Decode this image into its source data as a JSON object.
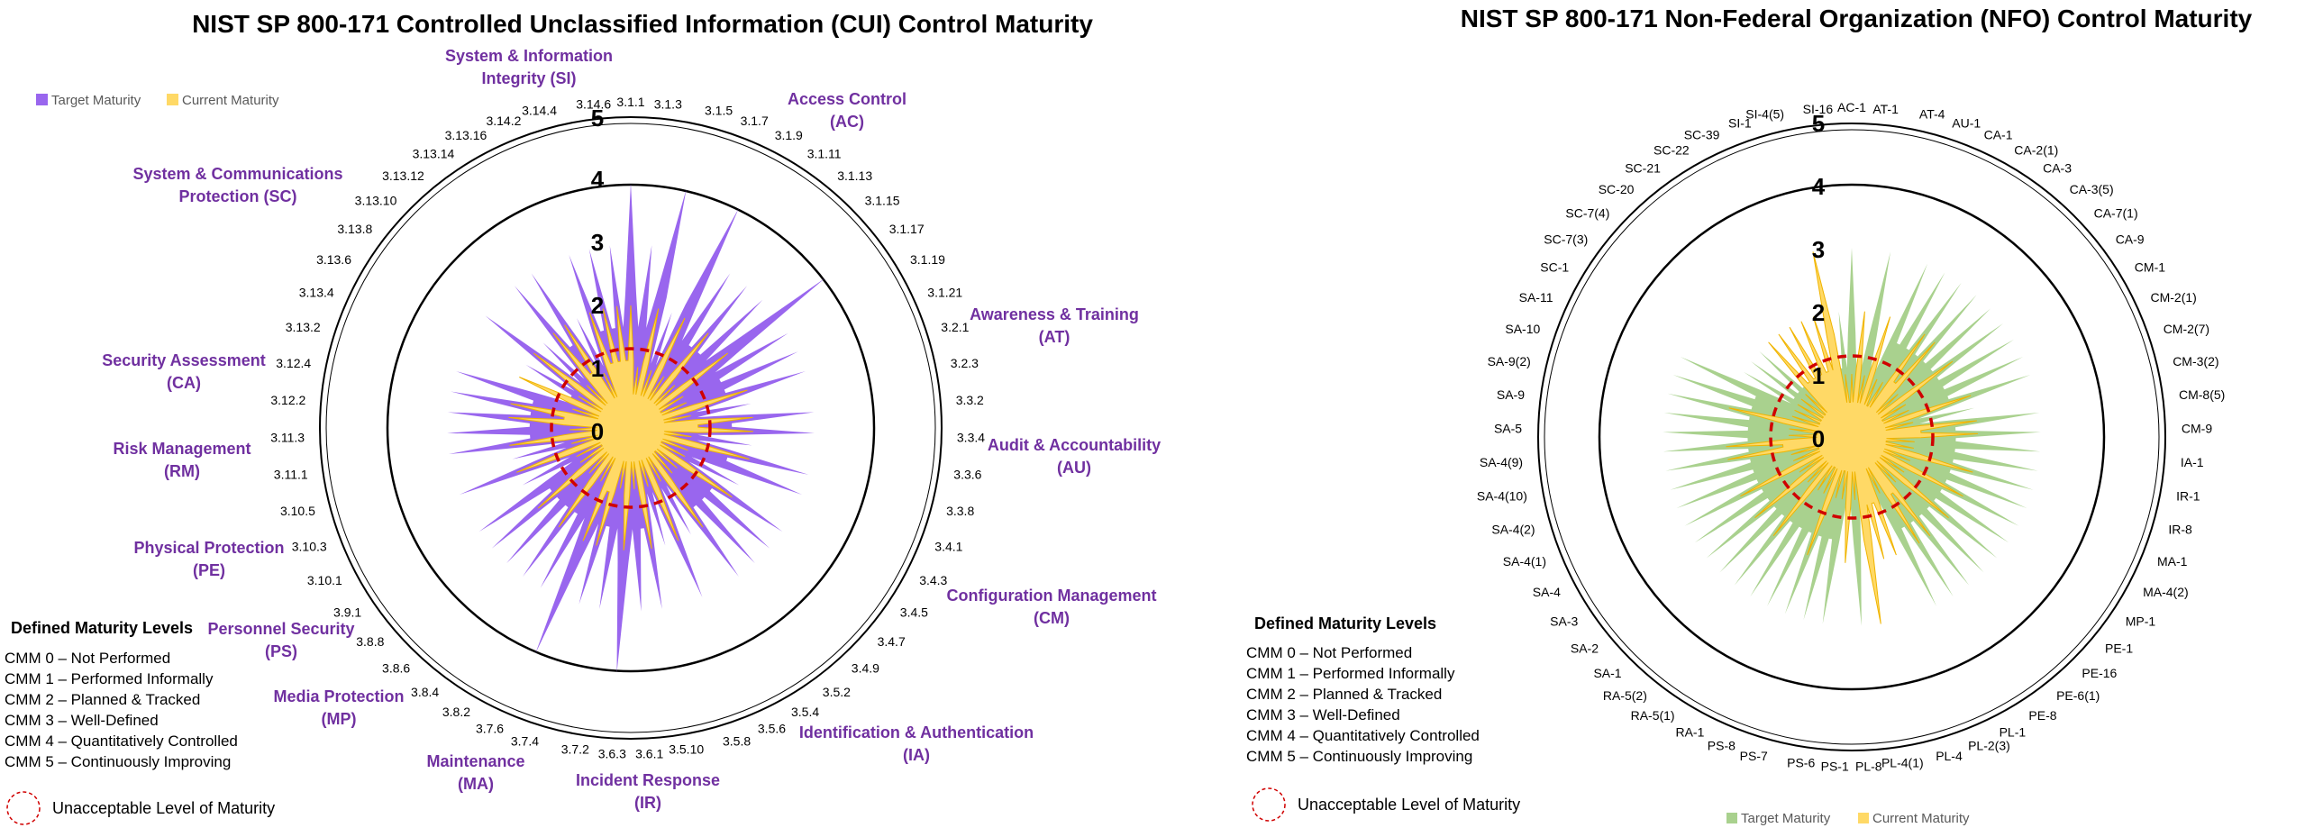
{
  "colors": {
    "cui_target": "#9966ee",
    "nfo_target": "#a9d18e",
    "current": "#ffd966",
    "current_stroke": "#f0b400",
    "threshold": "#d00000",
    "family_label": "#7030a0"
  },
  "chart_data": [
    {
      "type": "radar",
      "title": "NIST SP 800-171 Controlled Unclassified Information (CUI) Control Maturity",
      "rlim": [
        0,
        5
      ],
      "ring_labels": [
        "0",
        "1",
        "2",
        "3",
        "4",
        "5"
      ],
      "legend": [
        "Target Maturity",
        "Current Maturity"
      ],
      "threshold_level": 1,
      "categories": [
        "3.1.1",
        "3.1.3",
        "3.1.5",
        "3.1.7",
        "3.1.9",
        "3.1.11",
        "3.1.13",
        "3.1.15",
        "3.1.17",
        "3.1.19",
        "3.1.21",
        "3.2.1",
        "3.2.3",
        "3.3.2",
        "3.3.4",
        "3.3.6",
        "3.3.8",
        "3.4.1",
        "3.4.3",
        "3.4.5",
        "3.4.7",
        "3.4.9",
        "3.5.2",
        "3.5.4",
        "3.5.6",
        "3.5.8",
        "3.5.10",
        "3.6.1",
        "3.6.3",
        "3.7.2",
        "3.7.4",
        "3.7.6",
        "3.8.2",
        "3.8.4",
        "3.8.6",
        "3.8.8",
        "3.9.1",
        "3.10.1",
        "3.10.3",
        "3.10.5",
        "3.11.1",
        "3.11.3",
        "3.12.2",
        "3.12.4",
        "3.13.2",
        "3.13.4",
        "3.13.6",
        "3.13.8",
        "3.13.10",
        "3.13.12",
        "3.13.14",
        "3.13.16",
        "3.14.2",
        "3.14.4",
        "3.14.6"
      ],
      "series": [
        {
          "name": "Target Maturity",
          "values": [
            4,
            3,
            4,
            2,
            4,
            3,
            3,
            3,
            4,
            3,
            3,
            3,
            2,
            3,
            3,
            2,
            3,
            3,
            2,
            3,
            3,
            3,
            3,
            2,
            3,
            2,
            3,
            3,
            4,
            3,
            3,
            4,
            3,
            3,
            3,
            3,
            3,
            2,
            3,
            2,
            3,
            3,
            3,
            3,
            3,
            2,
            2,
            3,
            2,
            3,
            3,
            2,
            3,
            3,
            3
          ]
        },
        {
          "name": "Current Maturity",
          "values": [
            2,
            1,
            2,
            1,
            2,
            1,
            2,
            1,
            2,
            1,
            1,
            2,
            1,
            2,
            2,
            1,
            2,
            1,
            1,
            2,
            1,
            1,
            2,
            1,
            2,
            1,
            2,
            1,
            2,
            1,
            2,
            2,
            1,
            2,
            1,
            2,
            1,
            1,
            2,
            1,
            2,
            1,
            2,
            2,
            1,
            2,
            1,
            2,
            1,
            2,
            2,
            1,
            2,
            2,
            2
          ]
        }
      ],
      "family_labels": [
        {
          "lines": [
            "System & Information",
            "Integrity (SI)"
          ]
        },
        {
          "lines": [
            "Access Control",
            "(AC)"
          ]
        },
        {
          "lines": [
            "Awareness & Training",
            "(AT)"
          ]
        },
        {
          "lines": [
            "Audit & Accountability",
            "(AU)"
          ]
        },
        {
          "lines": [
            "Configuration Management",
            "(CM)"
          ]
        },
        {
          "lines": [
            "Identification & Authentication",
            "(IA)"
          ]
        },
        {
          "lines": [
            "Incident Response",
            "(IR)"
          ]
        },
        {
          "lines": [
            "Maintenance",
            "(MA)"
          ]
        },
        {
          "lines": [
            "Media Protection",
            "(MP)"
          ]
        },
        {
          "lines": [
            "Personnel Security",
            "(PS)"
          ]
        },
        {
          "lines": [
            "Physical Protection",
            "(PE)"
          ]
        },
        {
          "lines": [
            "Risk Management",
            "(RM)"
          ]
        },
        {
          "lines": [
            "Security Assessment",
            "(CA)"
          ]
        },
        {
          "lines": [
            "System & Communications",
            "Protection (SC)"
          ]
        }
      ]
    },
    {
      "type": "radar",
      "title": "NIST SP 800-171 Non-Federal Organization (NFO) Control Maturity",
      "rlim": [
        0,
        5
      ],
      "ring_labels": [
        "0",
        "1",
        "2",
        "3",
        "4",
        "5"
      ],
      "legend": [
        "Target Maturity",
        "Current Maturity"
      ],
      "threshold_level": 1,
      "categories": [
        "AC-1",
        "AT-1",
        "AT-4",
        "AU-1",
        "CA-1",
        "CA-2(1)",
        "CA-3",
        "CA-3(5)",
        "CA-7(1)",
        "CA-9",
        "CM-1",
        "CM-2(1)",
        "CM-2(7)",
        "CM-3(2)",
        "CM-8(5)",
        "CM-9",
        "IA-1",
        "IR-1",
        "IR-8",
        "MA-1",
        "MA-4(2)",
        "MP-1",
        "PE-1",
        "PE-16",
        "PE-6(1)",
        "PE-8",
        "PL-1",
        "PL-2(3)",
        "PL-4",
        "PL-4(1)",
        "PL-8",
        "PS-1",
        "PS-6",
        "PS-7",
        "PS-8",
        "RA-1",
        "RA-5(1)",
        "RA-5(2)",
        "SA-1",
        "SA-2",
        "SA-3",
        "SA-4",
        "SA-4(1)",
        "SA-4(2)",
        "SA-4(10)",
        "SA-4(9)",
        "SA-5",
        "SA-9",
        "SA-9(2)",
        "SA-10",
        "SA-11",
        "SC-1",
        "SC-7(3)",
        "SC-7(4)",
        "SC-20",
        "SC-21",
        "SC-22",
        "SC-39",
        "SI-1",
        "SI-4(5)",
        "SI-16"
      ],
      "series": [
        {
          "name": "Target Maturity",
          "values": [
            3,
            2,
            3,
            2,
            3,
            3,
            3,
            3,
            3,
            3,
            3,
            3,
            3,
            2,
            3,
            3,
            3,
            3,
            3,
            3,
            3,
            3,
            3,
            3,
            3,
            3,
            3,
            2,
            2,
            2,
            3,
            2,
            3,
            3,
            3,
            3,
            3,
            3,
            3,
            3,
            3,
            3,
            3,
            3,
            3,
            3,
            3,
            3,
            3,
            3,
            3,
            2,
            2,
            2,
            2,
            2,
            2,
            2,
            2,
            2,
            2
          ]
        },
        {
          "name": "Current Maturity",
          "values": [
            1,
            2,
            1,
            2,
            1,
            1,
            2,
            2,
            1,
            2,
            1,
            1,
            2,
            1,
            2,
            2,
            1,
            1,
            2,
            1,
            2,
            1,
            2,
            1,
            2,
            2,
            1,
            2,
            2,
            3,
            1,
            2,
            1,
            1,
            2,
            1,
            1,
            2,
            1,
            2,
            1,
            2,
            1,
            1,
            2,
            2,
            1,
            1,
            2,
            1,
            1,
            1,
            1,
            1,
            2,
            2,
            2,
            2,
            2,
            3,
            1
          ]
        }
      ]
    }
  ],
  "levels": {
    "title": "Defined Maturity Levels",
    "items": [
      "CMM 0 – Not Performed",
      "CMM 1 – Performed Informally",
      "CMM 2 – Planned & Tracked",
      "CMM 3 – Well-Defined",
      "CMM 4 – Quantitatively Controlled",
      "CMM 5 – Continuously Improving"
    ],
    "unacceptable": "Unacceptable Level of Maturity"
  }
}
